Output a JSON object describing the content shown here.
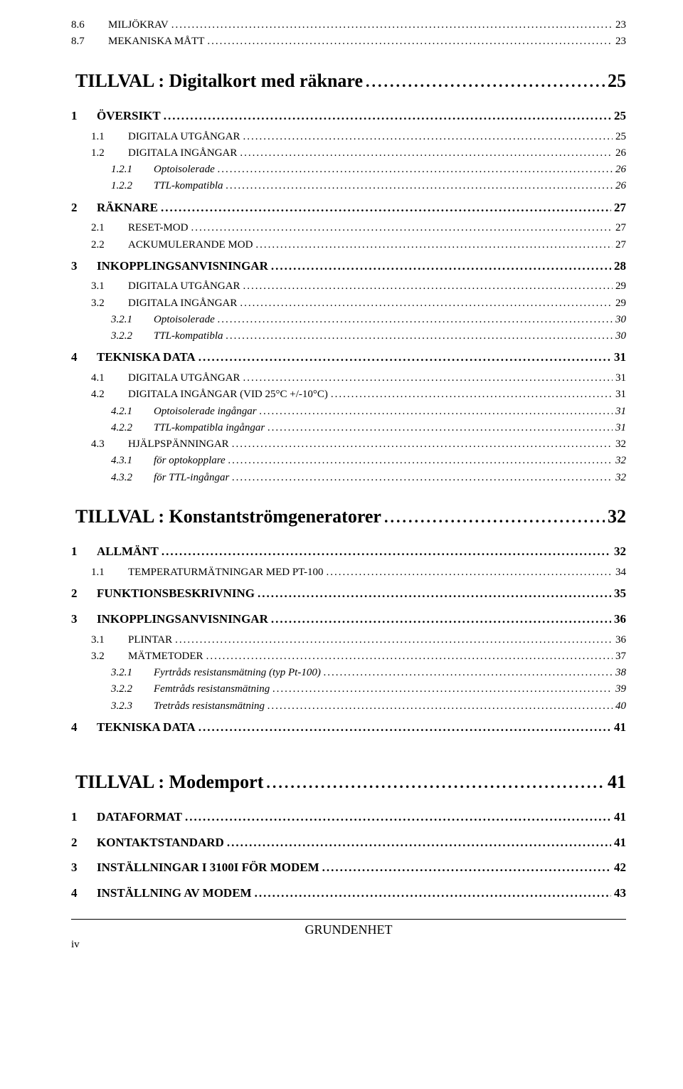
{
  "section_a": [
    {
      "num": "8.6",
      "label": "MILJÖKRAV",
      "page": "23",
      "level": "l2",
      "sc": true
    },
    {
      "num": "8.7",
      "label": "MEKANISKA MÅTT",
      "page": "23",
      "level": "l2",
      "sc": true
    }
  ],
  "heading_b": {
    "label": "TILLVAL : Digitalkort med räknare",
    "page": "25"
  },
  "section_b": [
    {
      "num": "1",
      "label": "ÖVERSIKT",
      "page": "25",
      "level": "l1"
    },
    {
      "num": "1.1",
      "label": "DIGITALA UTGÅNGAR",
      "page": "25",
      "level": "l2b",
      "sc": true
    },
    {
      "num": "1.2",
      "label": "DIGITALA INGÅNGAR",
      "page": "26",
      "level": "l2b",
      "sc": true
    },
    {
      "num": "1.2.1",
      "label": "Optoisolerade",
      "page": "26",
      "level": "l3"
    },
    {
      "num": "1.2.2",
      "label": "TTL-kompatibla",
      "page": "26",
      "level": "l3"
    },
    {
      "num": "2",
      "label": "RÄKNARE",
      "page": "27",
      "level": "l1"
    },
    {
      "num": "2.1",
      "label": "RESET-MOD",
      "page": "27",
      "level": "l2b",
      "sc": true
    },
    {
      "num": "2.2",
      "label": "ACKUMULERANDE MOD",
      "page": "27",
      "level": "l2b",
      "sc": true
    },
    {
      "num": "3",
      "label": "INKOPPLINGSANVISNINGAR",
      "page": "28",
      "level": "l1"
    },
    {
      "num": "3.1",
      "label": "DIGITALA UTGÅNGAR",
      "page": "29",
      "level": "l2b",
      "sc": true
    },
    {
      "num": "3.2",
      "label": "DIGITALA INGÅNGAR",
      "page": "29",
      "level": "l2b",
      "sc": true
    },
    {
      "num": "3.2.1",
      "label": "Optoisolerade",
      "page": "30",
      "level": "l3"
    },
    {
      "num": "3.2.2",
      "label": "TTL-kompatibla",
      "page": "30",
      "level": "l3"
    },
    {
      "num": "4",
      "label": "TEKNISKA DATA",
      "page": "31",
      "level": "l1"
    },
    {
      "num": "4.1",
      "label": "DIGITALA UTGÅNGAR",
      "page": "31",
      "level": "l2b",
      "sc": true
    },
    {
      "num": "4.2",
      "label": "DIGITALA INGÅNGAR (VID 25°C +/-10°C)",
      "page": "31",
      "level": "l2b",
      "sc": true
    },
    {
      "num": "4.2.1",
      "label": "Optoisolerade ingångar",
      "page": "31",
      "level": "l3"
    },
    {
      "num": "4.2.2",
      "label": "TTL-kompatibla ingångar",
      "page": "31",
      "level": "l3"
    },
    {
      "num": "4.3",
      "label": "HJÄLPSPÄNNINGAR",
      "page": "32",
      "level": "l2b",
      "sc": true
    },
    {
      "num": "4.3.1",
      "label": "för optokopplare",
      "page": "32",
      "level": "l3"
    },
    {
      "num": "4.3.2",
      "label": "för TTL-ingångar",
      "page": "32",
      "level": "l3"
    }
  ],
  "heading_c": {
    "label": "TILLVAL : Konstantströmgeneratorer",
    "page": "32"
  },
  "section_c": [
    {
      "num": "1",
      "label": "ALLMÄNT",
      "page": "32",
      "level": "l1"
    },
    {
      "num": "1.1",
      "label": "TEMPERATURMÄTNINGAR MED PT-100",
      "page": "34",
      "level": "l2b",
      "sc": true
    },
    {
      "num": "2",
      "label": "FUNKTIONSBESKRIVNING",
      "page": "35",
      "level": "l1"
    },
    {
      "num": "3",
      "label": "INKOPPLINGSANVISNINGAR",
      "page": "36",
      "level": "l1"
    },
    {
      "num": "3.1",
      "label": "PLINTAR",
      "page": "36",
      "level": "l2b",
      "sc": true
    },
    {
      "num": "3.2",
      "label": "MÄTMETODER",
      "page": "37",
      "level": "l2b",
      "sc": true
    },
    {
      "num": "3.2.1",
      "label": "Fyrtråds resistansmätning (typ Pt-100)",
      "page": "38",
      "level": "l3"
    },
    {
      "num": "3.2.2",
      "label": "Femtråds resistansmätning",
      "page": "39",
      "level": "l3"
    },
    {
      "num": "3.2.3",
      "label": "Tretråds resistansmätning",
      "page": "40",
      "level": "l3"
    },
    {
      "num": "4",
      "label": "TEKNISKA DATA",
      "page": "41",
      "level": "l1"
    }
  ],
  "heading_d": {
    "label": "TILLVAL : Modemport",
    "page": "41"
  },
  "section_d": [
    {
      "num": "1",
      "label": "DATAFORMAT",
      "page": "41",
      "level": "l1"
    },
    {
      "num": "2",
      "label": "KONTAKTSTANDARD",
      "page": "41",
      "level": "l1"
    },
    {
      "num": "3",
      "label": "INSTÄLLNINGAR I 3100I FÖR MODEM",
      "page": "42",
      "level": "l1"
    },
    {
      "num": "4",
      "label": "INSTÄLLNING AV MODEM",
      "page": "43",
      "level": "l1"
    }
  ],
  "footer": {
    "title": "GRUNDENHET",
    "page": "iv"
  }
}
